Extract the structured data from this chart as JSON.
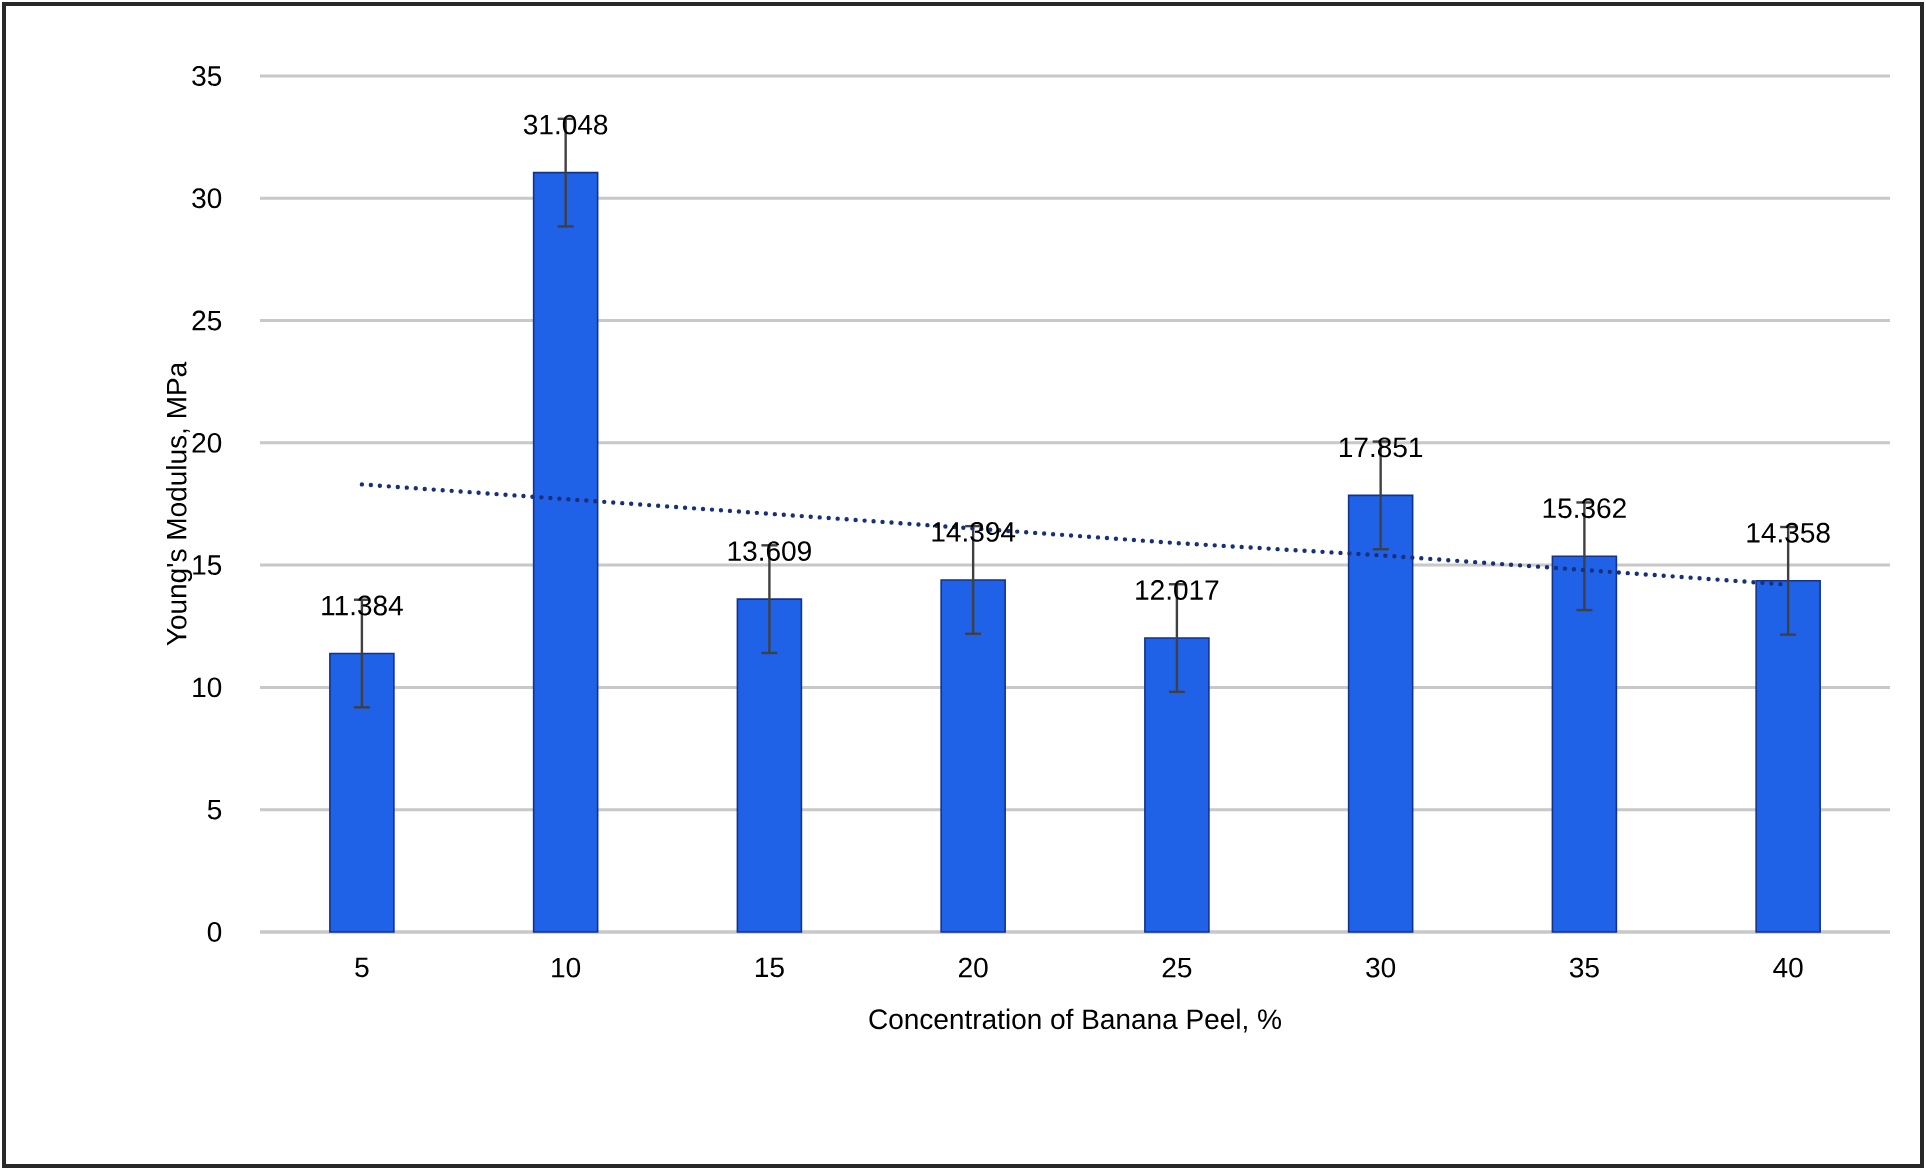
{
  "chart_data": {
    "type": "bar",
    "xlabel": "Concentration of Banana Peel, %",
    "ylabel": "Young's Modulus, MPa",
    "categories": [
      "5",
      "10",
      "15",
      "20",
      "25",
      "30",
      "35",
      "40"
    ],
    "series": [
      {
        "color": "#1f62e8",
        "values": [
          11.384,
          31.048,
          13.609,
          14.394,
          12.017,
          17.851,
          15.362,
          14.358
        ],
        "errors": [
          2.2,
          2.2,
          2.2,
          2.2,
          2.2,
          2.2,
          2.2,
          2.2
        ],
        "value_labels": [
          "11.384",
          "31.048",
          "13.609",
          "14.394",
          "12.017",
          "17.851",
          "15.362",
          "14.358"
        ]
      },
      {
        "type": "line",
        "color": "#1a2f7a",
        "line_style": "dotted",
        "marker": "none",
        "values": [
          18.3,
          17.7,
          17.1,
          16.5,
          15.9,
          15.4,
          14.8,
          14.2
        ]
      }
    ],
    "ylim": [
      0,
      35
    ],
    "yticks": [
      0,
      5,
      10,
      15,
      20,
      25,
      30,
      35
    ],
    "grid": "y",
    "legend": false
  }
}
